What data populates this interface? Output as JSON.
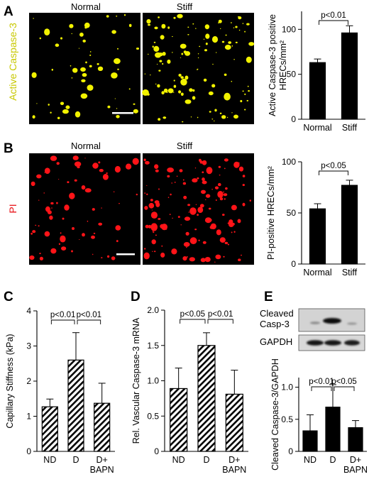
{
  "panels": {
    "A": {
      "letter": "A",
      "stain_label": "Active Caspase-3",
      "stain_color": "#c8c800",
      "dot_color": "#f2f200",
      "image_titles": [
        "Normal",
        "Stiff"
      ]
    },
    "B": {
      "letter": "B",
      "stain_label": "PI",
      "stain_color": "#e8141a",
      "dot_color": "#ff1418",
      "image_titles": [
        "Normal",
        "Stiff"
      ]
    },
    "C": {
      "letter": "C"
    },
    "D": {
      "letter": "D"
    },
    "E": {
      "letter": "E",
      "blot_labels": [
        "Cleaved\nCasp-3",
        "GAPDH"
      ]
    }
  },
  "chart_data": [
    {
      "panel": "A",
      "type": "bar",
      "categories": [
        "Normal",
        "Stiff"
      ],
      "values": [
        63,
        96
      ],
      "errors": [
        4,
        8
      ],
      "ylabel": "Active Caspase-3 positive\nHRECs/mm²",
      "ylim": [
        0,
        120
      ],
      "yticks": [
        0,
        50,
        100
      ],
      "fill": "solid",
      "annotations": [
        {
          "text": "p<0.01",
          "from": 0,
          "to": 1
        }
      ]
    },
    {
      "panel": "B",
      "type": "bar",
      "categories": [
        "Normal",
        "Stiff"
      ],
      "values": [
        54,
        77
      ],
      "errors": [
        5,
        5
      ],
      "ylabel": "PI-positive HRECs/mm²",
      "ylim": [
        0,
        100
      ],
      "yticks": [
        0,
        50,
        100
      ],
      "fill": "solid",
      "annotations": [
        {
          "text": "p<0.05",
          "from": 0,
          "to": 1
        }
      ]
    },
    {
      "panel": "C",
      "type": "bar",
      "categories": [
        "ND",
        "D",
        "D+\nBAPN"
      ],
      "values": [
        1.27,
        2.6,
        1.37
      ],
      "errors": [
        0.22,
        0.78,
        0.57
      ],
      "ylabel": "Capillary Stiffness (kPa)",
      "ylim": [
        0,
        4
      ],
      "yticks": [
        0,
        1,
        2,
        3,
        4
      ],
      "fill": "hatched",
      "annotations": [
        {
          "text": "p<0.01",
          "from": 0,
          "to": 1
        },
        {
          "text": "p<0.01",
          "from": 1,
          "to": 2
        }
      ]
    },
    {
      "panel": "D",
      "type": "bar",
      "categories": [
        "ND",
        "D",
        "D+\nBAPN"
      ],
      "values": [
        0.89,
        1.5,
        0.81
      ],
      "errors": [
        0.29,
        0.18,
        0.34
      ],
      "ylabel": "Rel. Vascular Caspase-3 mRNA",
      "ylim": [
        0,
        2
      ],
      "yticks": [
        0,
        0.5,
        1.0,
        1.5,
        2.0
      ],
      "ytick_labels": [
        "0",
        "0.5",
        "1.0",
        "1.5",
        "2.0"
      ],
      "fill": "hatched",
      "annotations": [
        {
          "text": "p<0.05",
          "from": 0,
          "to": 1
        },
        {
          "text": "p<0.01",
          "from": 1,
          "to": 2
        }
      ]
    },
    {
      "panel": "E",
      "type": "bar",
      "categories": [
        "ND",
        "D",
        "D+\nBAPN"
      ],
      "values": [
        0.32,
        0.69,
        0.37
      ],
      "errors": [
        0.25,
        0.35,
        0.11
      ],
      "ylabel": "Cleaved Caspase-3/GAPDH",
      "ylim": [
        0,
        1.15
      ],
      "yticks": [
        0,
        0.5,
        1.0
      ],
      "ytick_labels": [
        "0",
        "0.5",
        "1.0"
      ],
      "fill": "solid",
      "annotations": [
        {
          "text": "p<0.01",
          "from": 0,
          "to": 1
        },
        {
          "text": "p<0.05",
          "from": 1,
          "to": 2
        }
      ]
    }
  ]
}
